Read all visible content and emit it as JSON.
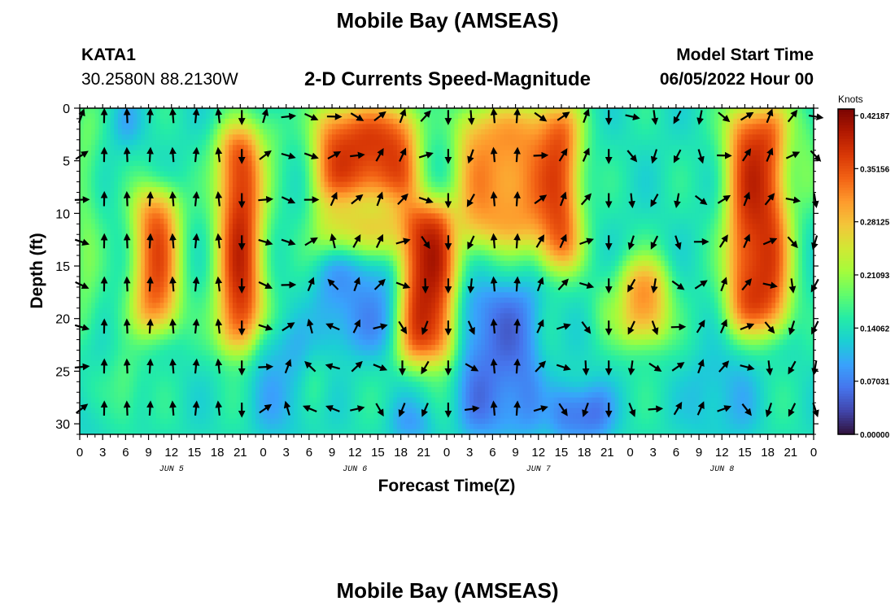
{
  "header": {
    "title": "Mobile Bay (AMSEAS)",
    "station": "KATA1",
    "coords": "30.2580N  88.2130W",
    "subtitle": "2-D Currents Speed-Magnitude",
    "model_start_label": "Model Start Time",
    "model_start_value": "06/05/2022 Hour 00"
  },
  "footer": {
    "title": "Mobile Bay (AMSEAS)"
  },
  "colors": {
    "scale": [
      "#30123b",
      "#4145ab",
      "#4675ed",
      "#39a2fc",
      "#1bcfd4",
      "#24eca6",
      "#61fc6c",
      "#a4fc3b",
      "#d1e834",
      "#f3c63a",
      "#fe9b2d",
      "#f36315",
      "#d93806",
      "#b11901",
      "#7a0402"
    ]
  },
  "chart_data": {
    "type": "heatmap",
    "xlabel": "Forecast Time(Z)",
    "ylabel": "Depth (ft)",
    "x_tick_labels": [
      "0",
      "3",
      "6",
      "9",
      "12",
      "15",
      "18",
      "21",
      "0",
      "3",
      "6",
      "9",
      "12",
      "15",
      "18",
      "21",
      "0",
      "3",
      "6",
      "9",
      "12",
      "15",
      "18",
      "21",
      "0",
      "3",
      "6",
      "9",
      "12",
      "15",
      "18",
      "21",
      "0"
    ],
    "x_day_labels": [
      "JUN 5",
      "JUN 6",
      "JUN 7",
      "JUN 8"
    ],
    "xlim_hours": [
      0,
      96
    ],
    "y_ticks": [
      0,
      5,
      10,
      15,
      20,
      25,
      30
    ],
    "ylim_ft": [
      0,
      31
    ],
    "y_inverted": true,
    "colorbar": {
      "title": "Knots",
      "tick_labels": [
        "0.42187",
        "0.35156",
        "0.28125",
        "0.21093",
        "0.14062",
        "0.07031",
        "0.00000"
      ],
      "range": [
        0.0,
        0.42187
      ]
    }
  }
}
